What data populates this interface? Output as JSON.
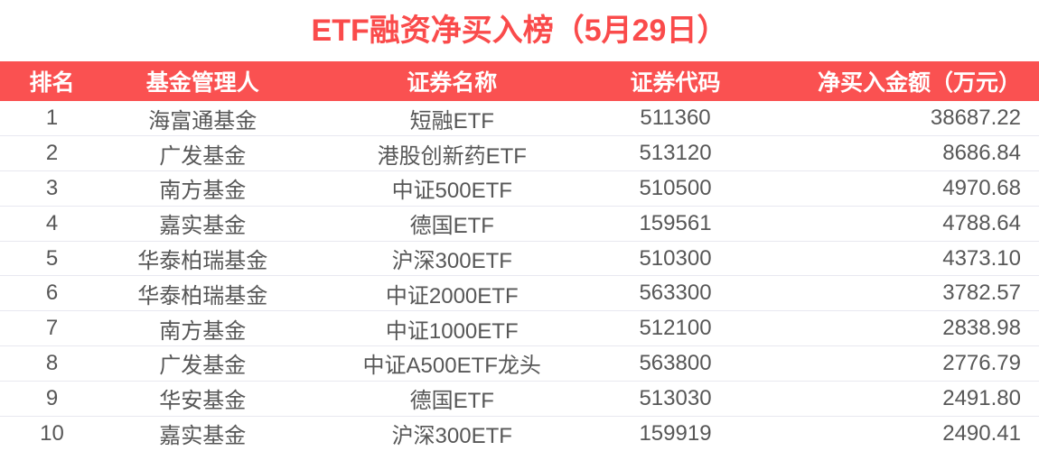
{
  "title": "ETF融资净买入榜（5月29日）",
  "colors": {
    "accent": "#FA5151",
    "title": "#FA4B4B",
    "header_text": "#FFFFFF",
    "body_text": "#575757",
    "divider": "#E8E8F0",
    "background": "#FFFFFF"
  },
  "chart_data": {
    "type": "table",
    "title": "ETF融资净买入榜（5月29日）",
    "columns": [
      "排名",
      "基金管理人",
      "证券名称",
      "证券代码",
      "净买入金额（万元）"
    ],
    "rows": [
      {
        "rank": "1",
        "manager": "海富通基金",
        "name": "短融ETF",
        "code": "511360",
        "amount": "38687.22"
      },
      {
        "rank": "2",
        "manager": "广发基金",
        "name": "港股创新药ETF",
        "code": "513120",
        "amount": "8686.84"
      },
      {
        "rank": "3",
        "manager": "南方基金",
        "name": "中证500ETF",
        "code": "510500",
        "amount": "4970.68"
      },
      {
        "rank": "4",
        "manager": "嘉实基金",
        "name": "德国ETF",
        "code": "159561",
        "amount": "4788.64"
      },
      {
        "rank": "5",
        "manager": "华泰柏瑞基金",
        "name": "沪深300ETF",
        "code": "510300",
        "amount": "4373.10"
      },
      {
        "rank": "6",
        "manager": "华泰柏瑞基金",
        "name": "中证2000ETF",
        "code": "563300",
        "amount": "3782.57"
      },
      {
        "rank": "7",
        "manager": "南方基金",
        "name": "中证1000ETF",
        "code": "512100",
        "amount": "2838.98"
      },
      {
        "rank": "8",
        "manager": "广发基金",
        "name": "中证A500ETF龙头",
        "code": "563800",
        "amount": "2776.79"
      },
      {
        "rank": "9",
        "manager": "华安基金",
        "name": "德国ETF",
        "code": "513030",
        "amount": "2491.80"
      },
      {
        "rank": "10",
        "manager": "嘉实基金",
        "name": "沪深300ETF",
        "code": "159919",
        "amount": "2490.41"
      }
    ],
    "amount_values": [
      38687.22,
      8686.84,
      4970.68,
      4788.64,
      4373.1,
      3782.57,
      2838.98,
      2776.79,
      2491.8,
      2490.41
    ]
  }
}
